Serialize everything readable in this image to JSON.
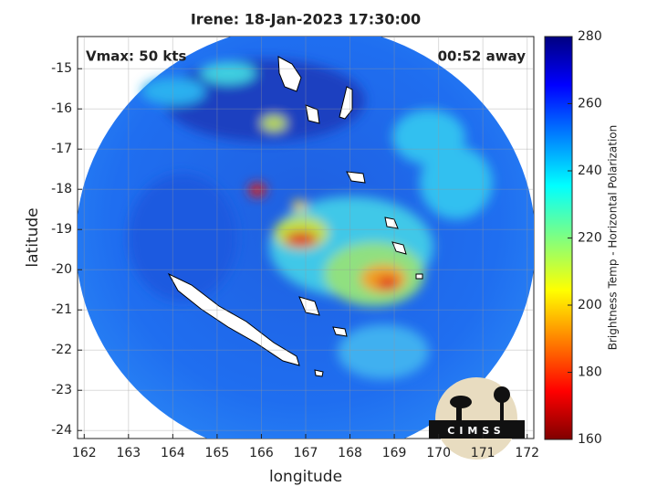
{
  "title": "Irene: 18-Jan-2023 17:30:00",
  "annotations": {
    "vmax": "Vmax: 50 kts",
    "time_away": "00:52 away"
  },
  "map": {
    "xlabel": "longitude",
    "ylabel": "latitude",
    "xlim": [
      161.85,
      172.15
    ],
    "ylim": [
      -24.2,
      -14.2
    ],
    "xticks": [
      162,
      163,
      164,
      165,
      166,
      167,
      168,
      169,
      170,
      171,
      172
    ],
    "yticks": [
      -15,
      -16,
      -17,
      -18,
      -19,
      -20,
      -21,
      -22,
      -23,
      -24
    ],
    "grid": true
  },
  "colorbar": {
    "label": "Brightness Temp - Horizontal Polarization",
    "lim": [
      160,
      280
    ],
    "ticks": [
      160,
      180,
      200,
      220,
      240,
      260,
      280
    ]
  },
  "logo": {
    "text": "CIMSS"
  }
}
